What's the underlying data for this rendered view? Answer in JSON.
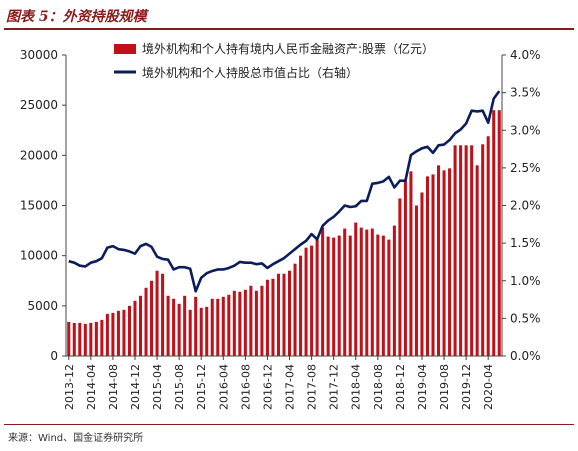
{
  "header": {
    "title": "图表 5：外资持股规模"
  },
  "footer": {
    "source": "来源：Wind、国金证券研究所"
  },
  "chart_data": {
    "type": "bar+line",
    "categories": [
      "2013-12",
      "2014-01",
      "2014-02",
      "2014-03",
      "2014-04",
      "2014-05",
      "2014-06",
      "2014-07",
      "2014-08",
      "2014-09",
      "2014-10",
      "2014-11",
      "2014-12",
      "2015-01",
      "2015-02",
      "2015-03",
      "2015-04",
      "2015-05",
      "2015-06",
      "2015-07",
      "2015-08",
      "2015-09",
      "2015-10",
      "2015-11",
      "2015-12",
      "2016-01",
      "2016-02",
      "2016-03",
      "2016-04",
      "2016-05",
      "2016-06",
      "2016-07",
      "2016-08",
      "2016-09",
      "2016-10",
      "2016-11",
      "2016-12",
      "2017-01",
      "2017-02",
      "2017-03",
      "2017-04",
      "2017-05",
      "2017-06",
      "2017-07",
      "2017-08",
      "2017-09",
      "2017-10",
      "2017-11",
      "2017-12",
      "2018-01",
      "2018-02",
      "2018-03",
      "2018-04",
      "2018-05",
      "2018-06",
      "2018-07",
      "2018-08",
      "2018-09",
      "2018-10",
      "2018-11",
      "2018-12",
      "2019-01",
      "2019-02",
      "2019-03",
      "2019-04",
      "2019-05",
      "2019-06",
      "2019-07",
      "2019-08",
      "2019-09",
      "2019-10",
      "2019-11",
      "2019-12",
      "2020-01",
      "2020-02",
      "2020-03",
      "2020-04",
      "2020-05",
      "2020-06"
    ],
    "x_tick_labels": [
      "2013-12",
      "2014-04",
      "2014-08",
      "2014-12",
      "2015-04",
      "2015-08",
      "2015-12",
      "2016-04",
      "2016-08",
      "2016-12",
      "2017-04",
      "2017-08",
      "2017-12",
      "2018-04",
      "2018-08",
      "2018-12",
      "2019-04",
      "2019-08",
      "2019-12",
      "2020-04"
    ],
    "series": [
      {
        "name": "境外机构和个人持有境内人民币金融资产:股票（亿元）",
        "type": "bar",
        "axis": "left",
        "color": "#c0111a",
        "values": [
          3400,
          3300,
          3300,
          3200,
          3300,
          3400,
          3600,
          4200,
          4300,
          4500,
          4600,
          5000,
          5500,
          6000,
          6800,
          7500,
          8500,
          8200,
          6000,
          5700,
          5200,
          6000,
          4600,
          5900,
          4800,
          4900,
          5700,
          5700,
          5900,
          6100,
          6500,
          6400,
          6600,
          7000,
          6500,
          7000,
          7600,
          7700,
          8200,
          8200,
          8500,
          9200,
          10000,
          10800,
          11000,
          11600,
          12800,
          11900,
          11800,
          12000,
          12700,
          12000,
          13300,
          12800,
          12600,
          12700,
          12100,
          12000,
          11600,
          13000,
          15700,
          17500,
          18400,
          15000,
          16300,
          17900,
          18100,
          19000,
          18500,
          18700,
          21000,
          21000,
          21000,
          21000,
          19000,
          21100,
          21900,
          24500,
          24500
        ]
      },
      {
        "name": "境外机构和个人持股总市值占比（右轴）",
        "type": "line",
        "axis": "right",
        "color": "#0d1d5c",
        "values": [
          1.26,
          1.24,
          1.2,
          1.19,
          1.24,
          1.26,
          1.3,
          1.44,
          1.46,
          1.42,
          1.41,
          1.39,
          1.36,
          1.46,
          1.49,
          1.45,
          1.32,
          1.29,
          1.28,
          1.15,
          1.18,
          1.18,
          1.16,
          0.86,
          1.04,
          1.1,
          1.13,
          1.15,
          1.15,
          1.17,
          1.2,
          1.25,
          1.24,
          1.24,
          1.22,
          1.23,
          1.17,
          1.22,
          1.26,
          1.3,
          1.36,
          1.42,
          1.48,
          1.53,
          1.62,
          1.55,
          1.73,
          1.8,
          1.85,
          1.92,
          2.0,
          1.98,
          1.99,
          2.06,
          2.06,
          2.29,
          2.3,
          2.32,
          2.38,
          2.24,
          2.33,
          2.33,
          2.67,
          2.72,
          2.76,
          2.78,
          2.7,
          2.8,
          2.81,
          2.87,
          2.96,
          3.01,
          3.09,
          3.26,
          3.25,
          3.26,
          3.1,
          3.42,
          3.52
        ]
      }
    ],
    "y_left": {
      "min": 0,
      "max": 30000,
      "ticks": [
        "0",
        "5000",
        "10000",
        "15000",
        "20000",
        "25000",
        "30000"
      ]
    },
    "y_right": {
      "min": 0,
      "max": 4.0,
      "ticks": [
        "0.0%",
        "0.5%",
        "1.0%",
        "1.5%",
        "2.0%",
        "2.5%",
        "3.0%",
        "3.5%",
        "4.0%"
      ]
    },
    "legend_position": "top-center",
    "grid": false
  }
}
